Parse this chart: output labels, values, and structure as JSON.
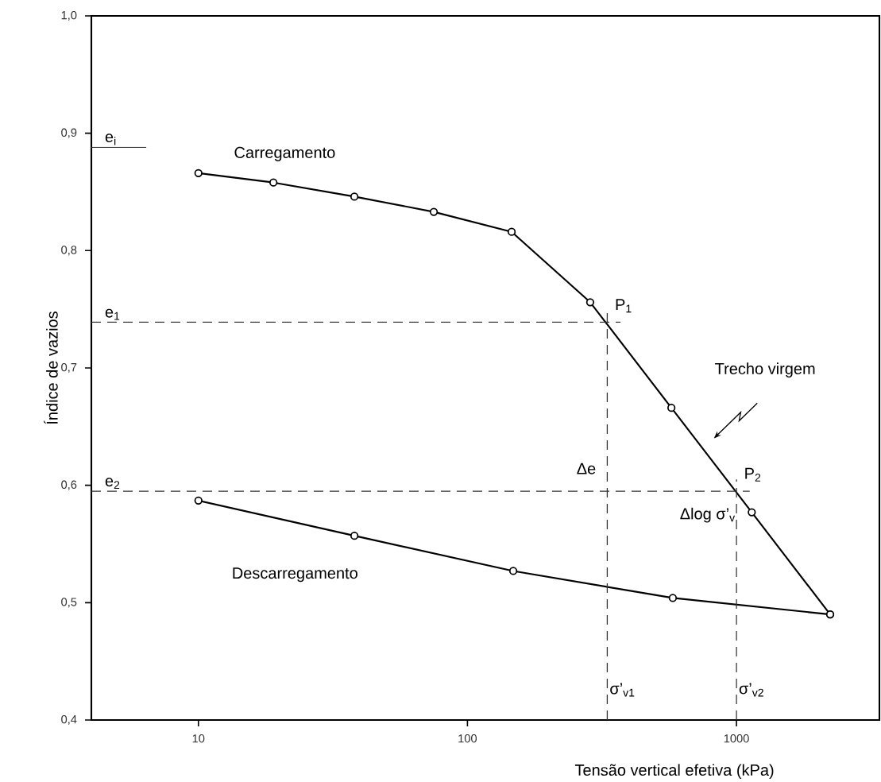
{
  "chart_data": {
    "type": "line",
    "xlabel": "Tensão vertical efetiva (kPa)",
    "ylabel": "Índice de vazios",
    "log": "x",
    "xlim": [
      4,
      3400
    ],
    "ylim": [
      0.4,
      1.0
    ],
    "xticks": [
      10,
      100,
      1000
    ],
    "yticks": [
      {
        "value": 0.4,
        "label": "0,4"
      },
      {
        "value": 0.5,
        "label": "0,5"
      },
      {
        "value": 0.6,
        "label": "0,6"
      },
      {
        "value": 0.7,
        "label": "0,7"
      },
      {
        "value": 0.8,
        "label": "0,8"
      },
      {
        "value": 0.9,
        "label": "0,9"
      },
      {
        "value": 1.0,
        "label": "1,0"
      }
    ],
    "marker": "circle",
    "line_style": "solid",
    "grid": false,
    "legend": false,
    "series": [
      {
        "name": "Carregamento",
        "color": "#000000",
        "x": [
          10,
          19,
          38,
          75,
          146,
          286,
          573,
          1140,
          2230
        ],
        "values": [
          0.866,
          0.858,
          0.846,
          0.833,
          0.816,
          0.756,
          0.666,
          0.577,
          0.49
        ]
      },
      {
        "name": "Descarregamento",
        "color": "#000000",
        "x": [
          10,
          38,
          148,
          580,
          2230
        ],
        "values": [
          0.587,
          0.557,
          0.527,
          0.504,
          0.49
        ]
      }
    ],
    "ref_lines": [
      {
        "axis": "y",
        "value": 0.888,
        "label": "e$_{i}$",
        "line_style": "solid"
      },
      {
        "axis": "y",
        "value": 0.739,
        "label": "e$_{1}$",
        "line_style": "dashed"
      },
      {
        "axis": "y",
        "value": 0.595,
        "label": "e$_{2}$",
        "line_style": "dashed"
      },
      {
        "axis": "x",
        "value": 331,
        "label": "σ’$_{v1}$",
        "line_style": "dashed"
      },
      {
        "axis": "x",
        "value": 1000,
        "label": "σ’$_{v2}$",
        "line_style": "dashed"
      }
    ],
    "annotations": [
      {
        "text": "P$_{1}$",
        "x": 331,
        "y": 0.739
      },
      {
        "text": "P$_{2}$",
        "x": 1000,
        "y": 0.595
      },
      "Trecho virgem",
      "Δe",
      "Δlog σ’$_{v}$"
    ]
  }
}
